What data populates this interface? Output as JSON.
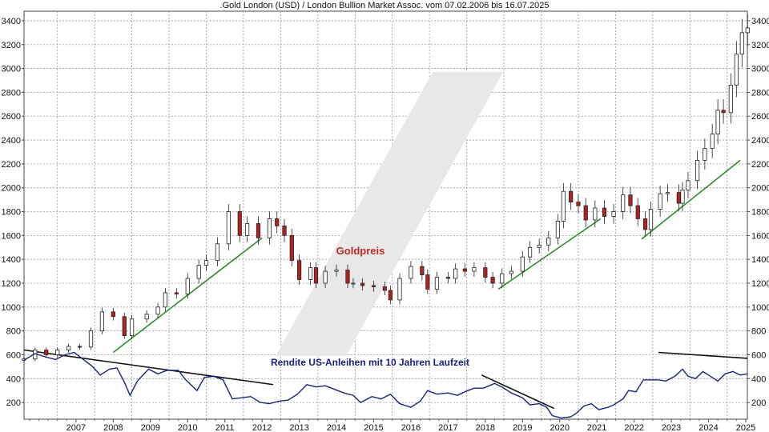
{
  "chart_data": {
    "type": "line",
    "title": ".Gold London (USD) / London Bullion Market Assoc. vom 07.02.2006 bis 16.07.2025",
    "xlabel": "",
    "ylabel": "",
    "x_range": [
      "2006-02-07",
      "2025-07-16"
    ],
    "ylim": [
      60,
      3480
    ],
    "y_ticks": [
      200,
      400,
      600,
      800,
      1000,
      1200,
      1400,
      1600,
      1800,
      2000,
      2200,
      2400,
      2600,
      2800,
      3000,
      3200,
      3400
    ],
    "x_ticks": [
      "2007",
      "2008",
      "2009",
      "2010",
      "2011",
      "2012",
      "2013",
      "2014",
      "2015",
      "2016",
      "2017",
      "2018",
      "2019",
      "2020",
      "2021",
      "2022",
      "2023",
      "2024",
      "2025"
    ],
    "grid": true,
    "legend": "none",
    "annotations": [
      {
        "text": "Goldpreis",
        "color": "#c0282a"
      },
      {
        "text": "Rendite US-Anleihen mit 10 Jahren Laufzeit",
        "color": "#1a237e"
      }
    ],
    "series": [
      {
        "name": "Goldpreis",
        "style": "candlestick",
        "color_up": "#ffffff",
        "color_down": "#b22222",
        "points": [
          [
            2006.1,
            565
          ],
          [
            2006.4,
            640
          ],
          [
            2006.7,
            600
          ],
          [
            2007.0,
            640
          ],
          [
            2007.3,
            670
          ],
          [
            2007.6,
            665
          ],
          [
            2007.9,
            800
          ],
          [
            2008.2,
            960
          ],
          [
            2008.5,
            920
          ],
          [
            2008.8,
            760
          ],
          [
            2009.0,
            900
          ],
          [
            2009.4,
            940
          ],
          [
            2009.7,
            1000
          ],
          [
            2009.9,
            1120
          ],
          [
            2010.2,
            1110
          ],
          [
            2010.5,
            1240
          ],
          [
            2010.8,
            1350
          ],
          [
            2011.0,
            1390
          ],
          [
            2011.3,
            1530
          ],
          [
            2011.6,
            1800
          ],
          [
            2011.9,
            1600
          ],
          [
            2012.1,
            1700
          ],
          [
            2012.4,
            1580
          ],
          [
            2012.7,
            1740
          ],
          [
            2012.9,
            1680
          ],
          [
            2013.1,
            1600
          ],
          [
            2013.3,
            1390
          ],
          [
            2013.5,
            1230
          ],
          [
            2013.8,
            1330
          ],
          [
            2013.95,
            1200
          ],
          [
            2014.2,
            1300
          ],
          [
            2014.5,
            1310
          ],
          [
            2014.8,
            1200
          ],
          [
            2014.95,
            1200
          ],
          [
            2015.2,
            1180
          ],
          [
            2015.5,
            1170
          ],
          [
            2015.8,
            1140
          ],
          [
            2015.95,
            1060
          ],
          [
            2016.2,
            1240
          ],
          [
            2016.5,
            1340
          ],
          [
            2016.8,
            1270
          ],
          [
            2016.95,
            1150
          ],
          [
            2017.2,
            1250
          ],
          [
            2017.5,
            1240
          ],
          [
            2017.7,
            1320
          ],
          [
            2017.95,
            1300
          ],
          [
            2018.2,
            1330
          ],
          [
            2018.5,
            1250
          ],
          [
            2018.7,
            1200
          ],
          [
            2018.95,
            1280
          ],
          [
            2019.2,
            1300
          ],
          [
            2019.5,
            1420
          ],
          [
            2019.7,
            1500
          ],
          [
            2019.95,
            1520
          ],
          [
            2020.2,
            1580
          ],
          [
            2020.45,
            1720
          ],
          [
            2020.6,
            1970
          ],
          [
            2020.8,
            1880
          ],
          [
            2021.0,
            1850
          ],
          [
            2021.2,
            1730
          ],
          [
            2021.45,
            1830
          ],
          [
            2021.7,
            1760
          ],
          [
            2021.95,
            1800
          ],
          [
            2022.2,
            1940
          ],
          [
            2022.4,
            1850
          ],
          [
            2022.6,
            1740
          ],
          [
            2022.8,
            1650
          ],
          [
            2022.95,
            1820
          ],
          [
            2023.2,
            1950
          ],
          [
            2023.4,
            1960
          ],
          [
            2023.7,
            1870
          ],
          [
            2023.8,
            1980
          ],
          [
            2023.95,
            2060
          ],
          [
            2024.2,
            2230
          ],
          [
            2024.4,
            2330
          ],
          [
            2024.6,
            2450
          ],
          [
            2024.75,
            2650
          ],
          [
            2024.9,
            2630
          ],
          [
            2025.1,
            2860
          ],
          [
            2025.25,
            3120
          ],
          [
            2025.4,
            3300
          ],
          [
            2025.55,
            3340
          ]
        ]
      },
      {
        "name": "Rendite US-Anleihen mit 10 Jahren Laufzeit",
        "style": "line",
        "color": "#1a237e",
        "points": [
          [
            2006.1,
            555
          ],
          [
            2006.4,
            610
          ],
          [
            2006.7,
            580
          ],
          [
            2006.95,
            560
          ],
          [
            2007.2,
            600
          ],
          [
            2007.45,
            620
          ],
          [
            2007.7,
            560
          ],
          [
            2007.95,
            500
          ],
          [
            2008.15,
            430
          ],
          [
            2008.4,
            480
          ],
          [
            2008.6,
            490
          ],
          [
            2008.8,
            370
          ],
          [
            2008.95,
            260
          ],
          [
            2009.15,
            380
          ],
          [
            2009.45,
            480
          ],
          [
            2009.7,
            440
          ],
          [
            2009.95,
            470
          ],
          [
            2010.25,
            470
          ],
          [
            2010.45,
            390
          ],
          [
            2010.75,
            300
          ],
          [
            2010.95,
            410
          ],
          [
            2011.2,
            420
          ],
          [
            2011.45,
            390
          ],
          [
            2011.7,
            230
          ],
          [
            2011.95,
            240
          ],
          [
            2012.2,
            250
          ],
          [
            2012.45,
            200
          ],
          [
            2012.7,
            190
          ],
          [
            2012.95,
            210
          ],
          [
            2013.2,
            220
          ],
          [
            2013.45,
            270
          ],
          [
            2013.7,
            350
          ],
          [
            2013.95,
            330
          ],
          [
            2014.2,
            340
          ],
          [
            2014.45,
            310
          ],
          [
            2014.7,
            280
          ],
          [
            2014.95,
            260
          ],
          [
            2015.15,
            200
          ],
          [
            2015.45,
            250
          ],
          [
            2015.7,
            230
          ],
          [
            2015.95,
            270
          ],
          [
            2016.2,
            190
          ],
          [
            2016.5,
            160
          ],
          [
            2016.75,
            210
          ],
          [
            2016.95,
            300
          ],
          [
            2017.2,
            270
          ],
          [
            2017.5,
            280
          ],
          [
            2017.75,
            260
          ],
          [
            2017.95,
            290
          ],
          [
            2018.2,
            320
          ],
          [
            2018.45,
            320
          ],
          [
            2018.75,
            360
          ],
          [
            2018.95,
            330
          ],
          [
            2019.2,
            280
          ],
          [
            2019.5,
            240
          ],
          [
            2019.7,
            180
          ],
          [
            2019.95,
            190
          ],
          [
            2020.15,
            160
          ],
          [
            2020.3,
            90
          ],
          [
            2020.55,
            70
          ],
          [
            2020.8,
            80
          ],
          [
            2020.95,
            110
          ],
          [
            2021.15,
            170
          ],
          [
            2021.35,
            190
          ],
          [
            2021.55,
            140
          ],
          [
            2021.8,
            160
          ],
          [
            2021.95,
            180
          ],
          [
            2022.2,
            230
          ],
          [
            2022.35,
            300
          ],
          [
            2022.55,
            290
          ],
          [
            2022.75,
            390
          ],
          [
            2022.95,
            390
          ],
          [
            2023.15,
            390
          ],
          [
            2023.35,
            380
          ],
          [
            2023.6,
            420
          ],
          [
            2023.8,
            480
          ],
          [
            2023.95,
            420
          ],
          [
            2024.15,
            400
          ],
          [
            2024.35,
            460
          ],
          [
            2024.55,
            420
          ],
          [
            2024.75,
            380
          ],
          [
            2024.95,
            440
          ],
          [
            2025.15,
            460
          ],
          [
            2025.35,
            430
          ],
          [
            2025.55,
            440
          ]
        ]
      },
      {
        "name": "",
        "style": "trend-line",
        "color": "#2e8b2e",
        "segments": [
          [
            [
              2008.5,
              620
            ],
            [
              2012.5,
              1580
            ]
          ],
          [
            [
              2018.85,
              1150
            ],
            [
              2021.6,
              1740
            ]
          ],
          [
            [
              2022.7,
              1570
            ],
            [
              2025.35,
              2230
            ]
          ]
        ]
      },
      {
        "name": "",
        "style": "trend-line",
        "color": "#111111",
        "segments": [
          [
            [
              2006.1,
              640
            ],
            [
              2012.8,
              350
            ]
          ],
          [
            [
              2018.4,
              430
            ],
            [
              2020.35,
              150
            ]
          ],
          [
            [
              2023.15,
              620
            ],
            [
              2025.55,
              570
            ]
          ]
        ]
      }
    ]
  }
}
